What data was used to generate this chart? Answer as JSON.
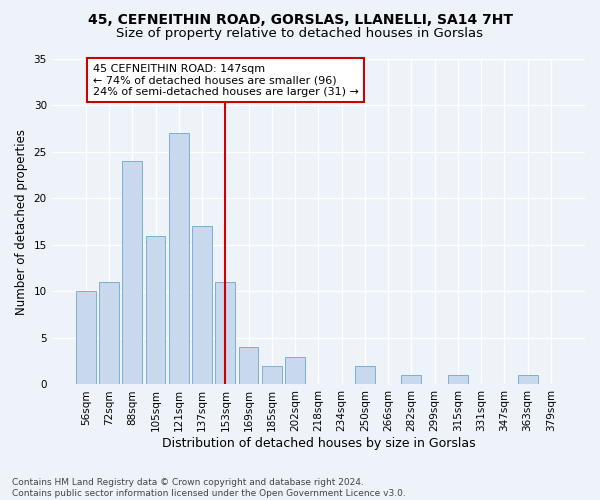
{
  "title1": "45, CEFNEITHIN ROAD, GORSLAS, LLANELLI, SA14 7HT",
  "title2": "Size of property relative to detached houses in Gorslas",
  "xlabel": "Distribution of detached houses by size in Gorslas",
  "ylabel": "Number of detached properties",
  "categories": [
    "56sqm",
    "72sqm",
    "88sqm",
    "105sqm",
    "121sqm",
    "137sqm",
    "153sqm",
    "169sqm",
    "185sqm",
    "202sqm",
    "218sqm",
    "234sqm",
    "250sqm",
    "266sqm",
    "282sqm",
    "299sqm",
    "315sqm",
    "331sqm",
    "347sqm",
    "363sqm",
    "379sqm"
  ],
  "values": [
    10,
    11,
    24,
    16,
    27,
    17,
    11,
    4,
    2,
    3,
    0,
    0,
    2,
    0,
    1,
    0,
    1,
    0,
    0,
    1,
    0
  ],
  "bar_color": "#c8d9ee",
  "bar_edge_color": "#7bafd4",
  "vline_x": 6,
  "vline_color": "#cc0000",
  "annotation_text": "45 CEFNEITHIN ROAD: 147sqm\n← 74% of detached houses are smaller (96)\n24% of semi-detached houses are larger (31) →",
  "annotation_box_color": "#ffffff",
  "annotation_box_edge": "#cc0000",
  "ylim": [
    0,
    35
  ],
  "yticks": [
    0,
    5,
    10,
    15,
    20,
    25,
    30,
    35
  ],
  "footer": "Contains HM Land Registry data © Crown copyright and database right 2024.\nContains public sector information licensed under the Open Government Licence v3.0.",
  "bg_color": "#eef2f9",
  "grid_color": "#ffffff",
  "title1_fontsize": 10,
  "title2_fontsize": 9.5,
  "xlabel_fontsize": 9,
  "ylabel_fontsize": 8.5,
  "tick_fontsize": 7.5,
  "annotation_fontsize": 8
}
